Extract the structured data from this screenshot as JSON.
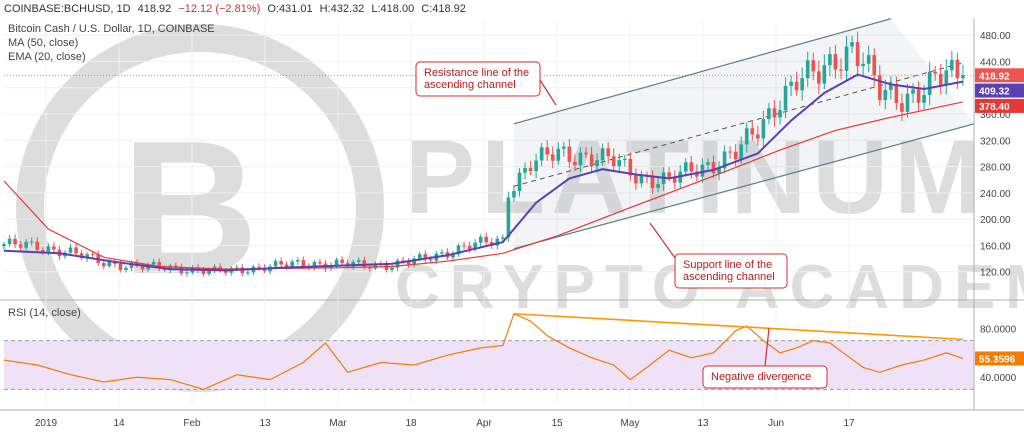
{
  "header": {
    "symbol": "COINBASE:BCHUSD, 1D",
    "last": "418.92",
    "change": "−12.12 (−2.81%)",
    "open": "O:431.01",
    "high": "H:432.32",
    "low": "L:418.00",
    "close": "C:418.92"
  },
  "legend": {
    "title": "Bitcoin Cash / U.S. Dollar, 1D, COINBASE",
    "ma": "MA (50, close)",
    "ema": "EMA (20, close)",
    "rsi": "RSI (14, close)"
  },
  "watermark": {
    "line1": "PLATINUM",
    "line2": "CRYPTO ACADEMY"
  },
  "annotations": {
    "resistance": [
      "Resistance line of the",
      "ascending channel"
    ],
    "support": [
      "Support line of the",
      "ascending channel"
    ],
    "divergence": "Negative divergence"
  },
  "price_tags": {
    "last": "418.92",
    "ema": "409.32",
    "ma": "378.40",
    "rsi": "55.3596"
  },
  "colors": {
    "up": "#26a69a",
    "down": "#ef5350",
    "ema": "#5b3fb3",
    "ma": "#e53935",
    "rsi": "#f57c00",
    "rsi_band": "#efe1f7",
    "channel": "#5f7c86",
    "divergence": "#ff9800",
    "annotation_border": "#d32f2f"
  },
  "chart_data": [
    {
      "type": "candlestick",
      "title": "Bitcoin Cash / U.S. Dollar, 1D, COINBASE",
      "ylim": [
        80,
        500
      ],
      "y_ticks": [
        "120.00",
        "160.00",
        "200.00",
        "240.00",
        "280.00",
        "320.00",
        "360.00",
        "400.00",
        "440.00",
        "480.00"
      ],
      "x_ticks": [
        "2019",
        "14",
        "Feb",
        "13",
        "Mar",
        "18",
        "Apr",
        "15",
        "May",
        "13",
        "Jun",
        "17"
      ],
      "close_series": [
        [
          0,
          162
        ],
        [
          6,
          158
        ],
        [
          12,
          150
        ],
        [
          18,
          133
        ],
        [
          24,
          128
        ],
        [
          30,
          126
        ],
        [
          38,
          120
        ],
        [
          46,
          126
        ],
        [
          54,
          133
        ],
        [
          62,
          131
        ],
        [
          70,
          130
        ],
        [
          76,
          140
        ],
        [
          84,
          160
        ],
        [
          90,
          168
        ],
        [
          91,
          245
        ],
        [
          95,
          285
        ],
        [
          100,
          300
        ],
        [
          105,
          296
        ],
        [
          110,
          288
        ],
        [
          115,
          263
        ],
        [
          120,
          258
        ],
        [
          124,
          275
        ],
        [
          128,
          285
        ],
        [
          132,
          300
        ],
        [
          136,
          336
        ],
        [
          140,
          385
        ],
        [
          143,
          410
        ],
        [
          147,
          420
        ],
        [
          150,
          445
        ],
        [
          153,
          462
        ],
        [
          155,
          440
        ],
        [
          158,
          392
        ],
        [
          162,
          385
        ],
        [
          166,
          398
        ],
        [
          170,
          420
        ],
        [
          173,
          418.92
        ]
      ],
      "ema_20": [
        [
          0,
          152
        ],
        [
          10,
          148
        ],
        [
          20,
          135
        ],
        [
          30,
          124
        ],
        [
          40,
          122
        ],
        [
          50,
          126
        ],
        [
          60,
          129
        ],
        [
          70,
          132
        ],
        [
          80,
          145
        ],
        [
          90,
          165
        ],
        [
          96,
          225
        ],
        [
          102,
          262
        ],
        [
          108,
          276
        ],
        [
          114,
          268
        ],
        [
          120,
          262
        ],
        [
          128,
          275
        ],
        [
          136,
          300
        ],
        [
          142,
          350
        ],
        [
          148,
          392
        ],
        [
          154,
          420
        ],
        [
          160,
          405
        ],
        [
          166,
          398
        ],
        [
          173,
          409.32
        ]
      ],
      "ma_50": [
        [
          0,
          258
        ],
        [
          8,
          185
        ],
        [
          18,
          142
        ],
        [
          28,
          128
        ],
        [
          40,
          124
        ],
        [
          50,
          125
        ],
        [
          60,
          126
        ],
        [
          70,
          128
        ],
        [
          80,
          136
        ],
        [
          90,
          148
        ],
        [
          100,
          175
        ],
        [
          110,
          208
        ],
        [
          120,
          240
        ],
        [
          130,
          272
        ],
        [
          140,
          305
        ],
        [
          150,
          335
        ],
        [
          160,
          355
        ],
        [
          173,
          378.4
        ]
      ],
      "channel_resistance": [
        [
          92,
          345
        ],
        [
          160,
          505
        ]
      ],
      "channel_midline": [
        [
          92,
          250
        ],
        [
          173,
          438
        ]
      ],
      "channel_support": [
        [
          92,
          155
        ],
        [
          175,
          345
        ]
      ]
    },
    {
      "type": "line",
      "title": "RSI (14, close)",
      "ylim": [
        18,
        100
      ],
      "y_ticks": [
        "40.0000",
        "80.0000"
      ],
      "band": [
        30,
        70
      ],
      "values": [
        [
          0,
          54
        ],
        [
          6,
          50
        ],
        [
          12,
          42
        ],
        [
          18,
          36
        ],
        [
          24,
          40
        ],
        [
          30,
          38
        ],
        [
          36,
          30
        ],
        [
          42,
          42
        ],
        [
          48,
          38
        ],
        [
          54,
          52
        ],
        [
          58,
          68
        ],
        [
          62,
          44
        ],
        [
          68,
          52
        ],
        [
          74,
          50
        ],
        [
          80,
          58
        ],
        [
          86,
          64
        ],
        [
          90,
          66
        ],
        [
          92,
          92
        ],
        [
          95,
          86
        ],
        [
          98,
          74
        ],
        [
          102,
          64
        ],
        [
          106,
          56
        ],
        [
          110,
          50
        ],
        [
          113,
          38
        ],
        [
          116,
          48
        ],
        [
          120,
          62
        ],
        [
          124,
          56
        ],
        [
          128,
          60
        ],
        [
          132,
          78
        ],
        [
          134,
          82
        ],
        [
          137,
          70
        ],
        [
          140,
          60
        ],
        [
          143,
          64
        ],
        [
          146,
          70
        ],
        [
          149,
          68
        ],
        [
          152,
          58
        ],
        [
          155,
          48
        ],
        [
          158,
          44
        ],
        [
          162,
          50
        ],
        [
          166,
          54
        ],
        [
          170,
          60
        ],
        [
          173,
          55.3596
        ]
      ],
      "divergence_line": [
        [
          92,
          92
        ],
        [
          173,
          71
        ]
      ]
    }
  ]
}
